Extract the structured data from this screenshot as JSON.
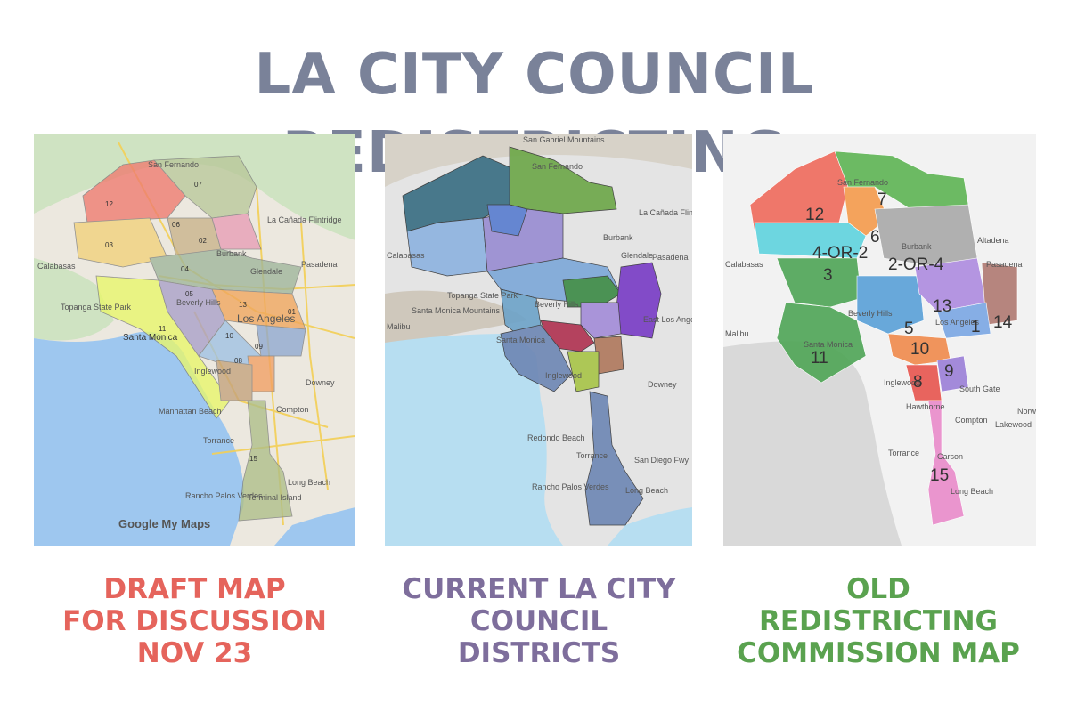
{
  "title": "LA CITY COUNCIL REDISTRICTING",
  "maps": [
    {
      "caption": [
        "DRAFT MAP",
        "FOR DISCUSSION",
        "NOV 23"
      ],
      "caption_color": "#e5645c",
      "attribution": "Google My Maps",
      "places": [
        "San Fernando",
        "La Cañada Flintridge",
        "Burbank",
        "Glendale",
        "Pasadena",
        "Calabasas",
        "Topanga State Park",
        "Beverly Hills",
        "Los Angeles",
        "Santa Monica",
        "Inglewood",
        "Downey",
        "Compton",
        "Manhattan Beach",
        "Torrance",
        "Long Beach",
        "Rancho Palos Verdes",
        "Terminal Island"
      ],
      "district_labels": [
        "07",
        "12",
        "06",
        "02",
        "03",
        "04",
        "05",
        "13",
        "01",
        "11",
        "10",
        "09",
        "08",
        "15"
      ]
    },
    {
      "caption": [
        "CURRENT LA CITY",
        "COUNCIL",
        "DISTRICTS"
      ],
      "caption_color": "#7e6e9c",
      "places": [
        "San Gabriel Mountains",
        "San Fernando",
        "La Cañada Flintridge",
        "Burbank",
        "Glendale",
        "Pasadena",
        "Calabasas",
        "Topanga State Park",
        "Santa Monica Mountains",
        "Beverly Hills",
        "Malibu",
        "Santa Monica",
        "Inglewood",
        "East Los Angeles",
        "Downey",
        "Redondo Beach",
        "Torrance",
        "San Diego Fwy",
        "Rancho Palos Verdes",
        "Long Beach"
      ]
    },
    {
      "caption": [
        "OLD",
        "REDISTRICTING",
        "COMMISSION MAP"
      ],
      "caption_color": "#5aa24f",
      "places": [
        "San Fernando",
        "Burbank",
        "Altadena",
        "Calabasas",
        "Pasadena",
        "Beverly Hills",
        "Los Angeles",
        "Malibu",
        "Santa Monica",
        "Inglewood",
        "South Gate",
        "Hawthorne",
        "Compton",
        "Lakewood",
        "Norwalk",
        "Torrance",
        "Carson",
        "Long Beach"
      ],
      "district_labels": [
        "12",
        "7",
        "6",
        "4-OR-2",
        "2-OR-4",
        "3",
        "13",
        "5",
        "1",
        "14",
        "10",
        "11",
        "9",
        "8",
        "15"
      ]
    }
  ]
}
